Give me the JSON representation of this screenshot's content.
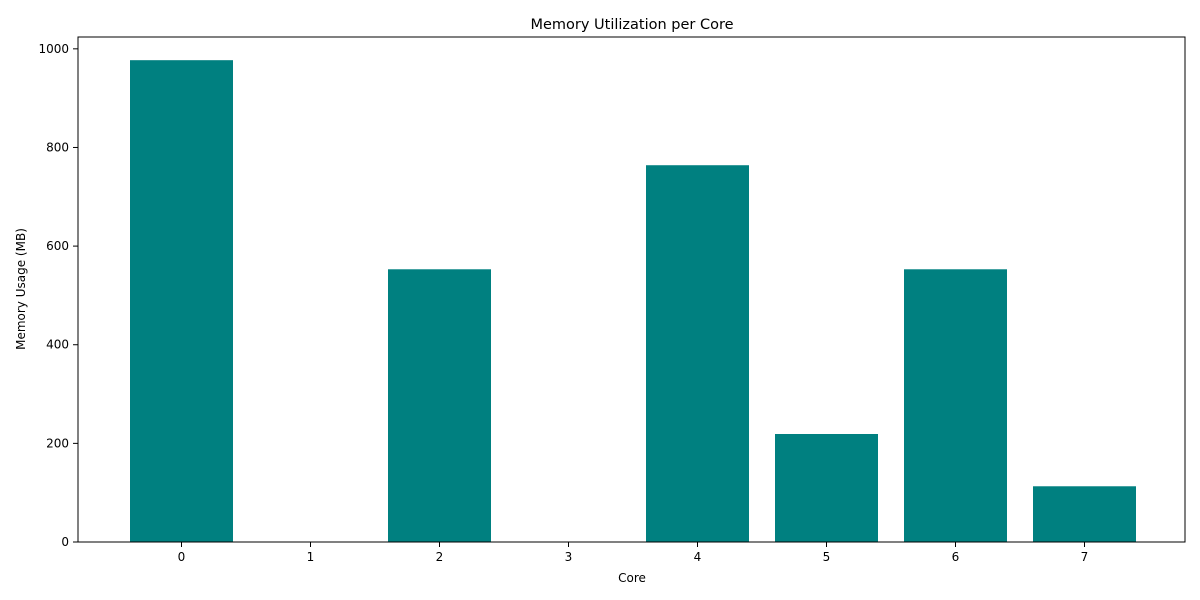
{
  "chart_data": {
    "type": "bar",
    "title": "Memory Utilization per Core",
    "xlabel": "Core",
    "ylabel": "Memory Usage (MB)",
    "categories": [
      "0",
      "1",
      "2",
      "3",
      "4",
      "5",
      "6",
      "7"
    ],
    "values": [
      977,
      0,
      553,
      0,
      764,
      219,
      553,
      113
    ],
    "ylim": [
      0,
      1024
    ],
    "yticks": [
      0,
      200,
      400,
      600,
      800,
      1000
    ],
    "bar_color": "#008080",
    "grid": false,
    "legend": "none"
  }
}
